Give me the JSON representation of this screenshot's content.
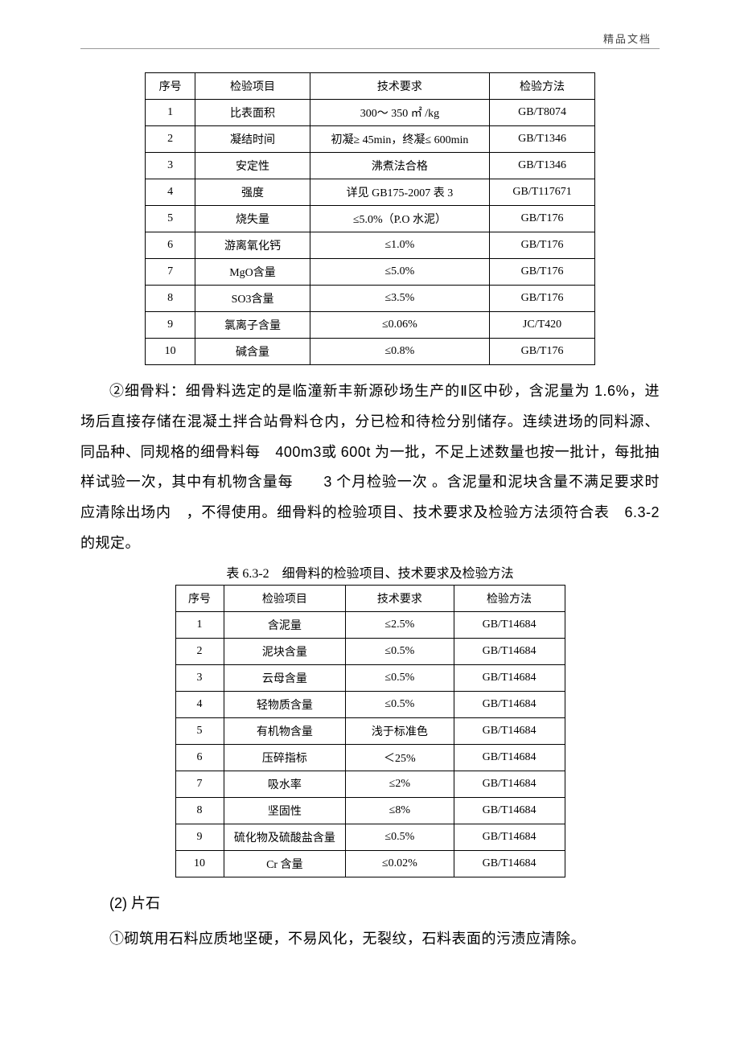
{
  "header_mark": "精品文档",
  "table1": {
    "columns": [
      "序号",
      "检验项目",
      "技术要求",
      "检验方法"
    ],
    "rows": [
      [
        "1",
        "比表面积",
        "300～ 350 ㎡ /kg",
        "GB/T8074"
      ],
      [
        "2",
        "凝结时间",
        "初凝≥ 45min，终凝≤ 600min",
        "GB/T1346"
      ],
      [
        "3",
        "安定性",
        "沸煮法合格",
        "GB/T1346"
      ],
      [
        "4",
        "强度",
        "详见 GB175-2007 表 3",
        "GB/T117671"
      ],
      [
        "5",
        "烧失量",
        "≤5.0%（P.O 水泥）",
        "GB/T176"
      ],
      [
        "6",
        "游离氧化钙",
        "≤1.0%",
        "GB/T176"
      ],
      [
        "7",
        "MgO含量",
        "≤5.0%",
        "GB/T176"
      ],
      [
        "8",
        "SO3含量",
        "≤3.5%",
        "GB/T176"
      ],
      [
        "9",
        "氯离子含量",
        "≤0.06%",
        "JC/T420"
      ],
      [
        "10",
        "碱含量",
        "≤0.8%",
        "GB/T176"
      ]
    ]
  },
  "para1_parts": {
    "t0": "②细骨料：细骨料选定的是临潼新丰新源砂场生产的Ⅱ区中砂，含泥量为 ",
    "n0": "1.6%",
    "t1": "，进场后直接存储在混凝土拌合站骨料仓内，分已检和待检分别储存。连续进场的同料源、同品种、同规格的细骨料每　",
    "n1": "400m3",
    "t2": "或 ",
    "n2": "600t",
    "t3": " 为一批，不足上述数量也按一批计，每批抽样试验一次，其中有机物含量每　　",
    "n3": "3",
    "t4": " 个月检验一次 。含泥量和泥块含量不满足要求时应清除出场内　，不得使用。细骨料的检验项目、技术要求及检验方法须符合表　",
    "n4": "6.3-2",
    "t5": "  的规定。"
  },
  "caption2": "表 6.3-2　细骨料的检验项目、技术要求及检验方法",
  "table2": {
    "columns": [
      "序号",
      "检验项目",
      "技术要求",
      "检验方法"
    ],
    "rows": [
      [
        "1",
        "含泥量",
        "≤2.5%",
        "GB/T14684"
      ],
      [
        "2",
        "泥块含量",
        "≤0.5%",
        "GB/T14684"
      ],
      [
        "3",
        "云母含量",
        "≤0.5%",
        "GB/T14684"
      ],
      [
        "4",
        "轻物质含量",
        "≤0.5%",
        "GB/T14684"
      ],
      [
        "5",
        "有机物含量",
        "浅于标准色",
        "GB/T14684"
      ],
      [
        "6",
        "压碎指标",
        "＜25%",
        "GB/T14684"
      ],
      [
        "7",
        "吸水率",
        "≤2%",
        "GB/T14684"
      ],
      [
        "8",
        "坚固性",
        "≤8%",
        "GB/T14684"
      ],
      [
        "9",
        "硫化物及硫酸盐含量",
        "≤0.5%",
        "GB/T14684"
      ],
      [
        "10",
        "Cr 含量",
        "≤0.02%",
        "GB/T14684"
      ]
    ]
  },
  "section2_heading": "(2) 片石",
  "para2": "①砌筑用石料应质地坚硬，不易风化，无裂纹，石料表面的污渍应清除。"
}
